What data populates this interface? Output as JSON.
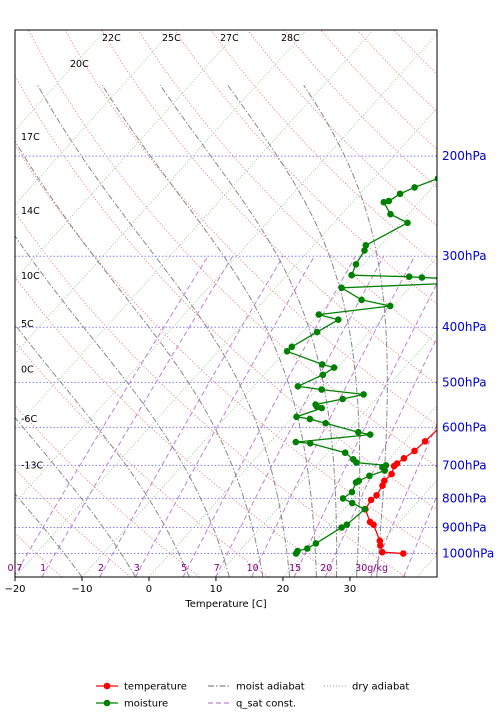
{
  "chart_data": {
    "type": "line",
    "title": "",
    "xlabel": "Temperature [C]",
    "ylabel": "",
    "xlim": [
      -20,
      43
    ],
    "ylim_hpa": [
      1100,
      120
    ],
    "log_y": true,
    "grid": false,
    "legend_placement": "bottom",
    "x_ticks": [
      -20,
      -10,
      0,
      10,
      20,
      30
    ],
    "x_tick_labels": [
      "−20",
      "−10",
      "0",
      "10",
      "20",
      "30"
    ],
    "pressure_levels": [
      200,
      300,
      400,
      500,
      600,
      700,
      800,
      900,
      1000
    ],
    "pressure_labels": [
      "200hPa",
      "300hPa",
      "400hPa",
      "500hPa",
      "600hPa",
      "700hPa",
      "800hPa",
      "900hPa",
      "1000hPa"
    ],
    "dry_adiabat_labels": [
      {
        "text": "-13C",
        "p": 700
      },
      {
        "text": "-6C",
        "p": 580
      },
      {
        "text": "0C",
        "p": 475
      },
      {
        "text": "5C",
        "p": 395
      },
      {
        "text": "10C",
        "p": 325
      },
      {
        "text": "14C",
        "p": 250
      },
      {
        "text": "17C",
        "p": 185
      },
      {
        "text": "20C",
        "p": 155
      },
      {
        "text": "22C",
        "p": 135
      },
      {
        "text": "25C",
        "p": 135
      },
      {
        "text": "27C",
        "p": 135
      },
      {
        "text": "28C",
        "p": 135
      }
    ],
    "mixing_ratio_labels": [
      "0.7",
      "1",
      "2",
      "3",
      "5",
      "7",
      "10",
      "15",
      "20",
      "30g/kg"
    ],
    "mixing_ratio_values": [
      0.7,
      1,
      2,
      3,
      5,
      7,
      10,
      15,
      20,
      30
    ],
    "series": [
      {
        "name": "temperature",
        "color": "#ff0000",
        "points": [
          {
            "x": 34.8,
            "p": 1000
          },
          {
            "x": 31.5,
            "p": 995
          },
          {
            "x": 30.3,
            "p": 968
          },
          {
            "x": 29.6,
            "p": 950
          },
          {
            "x": 26.5,
            "p": 890
          },
          {
            "x": 25.6,
            "p": 880
          },
          {
            "x": 23.2,
            "p": 836
          },
          {
            "x": 22.8,
            "p": 805
          },
          {
            "x": 23.0,
            "p": 790
          },
          {
            "x": 22.6,
            "p": 760
          },
          {
            "x": 22.2,
            "p": 745
          },
          {
            "x": 22.4,
            "p": 725
          },
          {
            "x": 21.7,
            "p": 702
          },
          {
            "x": 21.8,
            "p": 695
          },
          {
            "x": 22.1,
            "p": 680
          },
          {
            "x": 22.7,
            "p": 660
          },
          {
            "x": 23.0,
            "p": 635
          },
          {
            "x": 23.3,
            "p": 600
          },
          {
            "x": 23.1,
            "p": 590
          },
          {
            "x": 22.8,
            "p": 585
          },
          {
            "x": 22.6,
            "p": 560
          },
          {
            "x": 22.0,
            "p": 540
          },
          {
            "x": 21.6,
            "p": 530
          },
          {
            "x": 21.0,
            "p": 515
          },
          {
            "x": 20.6,
            "p": 502
          },
          {
            "x": 20.5,
            "p": 490
          },
          {
            "x": 20.2,
            "p": 475
          },
          {
            "x": 18.6,
            "p": 450
          },
          {
            "x": 18.1,
            "p": 440
          },
          {
            "x": 17.1,
            "p": 425
          },
          {
            "x": 15.5,
            "p": 400
          },
          {
            "x": 15.0,
            "p": 392
          },
          {
            "x": 14.5,
            "p": 382
          },
          {
            "x": 14.3,
            "p": 360
          },
          {
            "x": 14.1,
            "p": 340
          },
          {
            "x": 14.3,
            "p": 330
          },
          {
            "x": 13.9,
            "p": 315
          },
          {
            "x": 13.6,
            "p": 305
          },
          {
            "x": 13.3,
            "p": 293
          },
          {
            "x": 13.0,
            "p": 290
          },
          {
            "x": 13.4,
            "p": 285
          },
          {
            "x": 14.3,
            "p": 275
          },
          {
            "x": 16.2,
            "p": 262
          },
          {
            "x": 19.3,
            "p": 245
          },
          {
            "x": 20.1,
            "p": 238
          },
          {
            "x": 21.2,
            "p": 222
          },
          {
            "x": 26.1,
            "p": 198
          },
          {
            "x": 30.2,
            "p": 187
          },
          {
            "x": 31.2,
            "p": 183
          },
          {
            "x": 32.3,
            "p": 179
          },
          {
            "x": 33.6,
            "p": 175
          },
          {
            "x": 35.3,
            "p": 171
          },
          {
            "x": 35.6,
            "p": 170
          },
          {
            "x": 37.8,
            "p": 162
          },
          {
            "x": 39.9,
            "p": 154
          }
        ]
      },
      {
        "name": "moisture",
        "color": "#008000",
        "points": [
          {
            "x": 18.8,
            "p": 1000
          },
          {
            "x": 18.7,
            "p": 990
          },
          {
            "x": 19.8,
            "p": 980
          },
          {
            "x": 20.4,
            "p": 960
          },
          {
            "x": 22.1,
            "p": 900
          },
          {
            "x": 22.5,
            "p": 890
          },
          {
            "x": 23.1,
            "p": 836
          },
          {
            "x": 20.4,
            "p": 815
          },
          {
            "x": 18.4,
            "p": 800
          },
          {
            "x": 18.9,
            "p": 780
          },
          {
            "x": 18.2,
            "p": 750
          },
          {
            "x": 18.4,
            "p": 745
          },
          {
            "x": 19.3,
            "p": 730
          },
          {
            "x": 20.9,
            "p": 715
          },
          {
            "x": 20.1,
            "p": 705
          },
          {
            "x": 20.4,
            "p": 700
          },
          {
            "x": 15.6,
            "p": 692
          },
          {
            "x": 14.7,
            "p": 683
          },
          {
            "x": 12.6,
            "p": 665
          },
          {
            "x": 6.1,
            "p": 640
          },
          {
            "x": 3.8,
            "p": 637
          },
          {
            "x": 13.9,
            "p": 618
          },
          {
            "x": 11.8,
            "p": 612
          },
          {
            "x": 5.7,
            "p": 590
          },
          {
            "x": 2.8,
            "p": 580
          },
          {
            "x": 0.5,
            "p": 575
          },
          {
            "x": 3.1,
            "p": 555
          },
          {
            "x": 2.1,
            "p": 551
          },
          {
            "x": 1.7,
            "p": 547
          },
          {
            "x": 5.0,
            "p": 535
          },
          {
            "x": 7.5,
            "p": 525
          },
          {
            "x": 0.6,
            "p": 515
          },
          {
            "x": -3.4,
            "p": 508
          },
          {
            "x": -1.2,
            "p": 485
          },
          {
            "x": -0.5,
            "p": 471
          },
          {
            "x": -2.7,
            "p": 465
          },
          {
            "x": -9.7,
            "p": 441
          },
          {
            "x": -9.6,
            "p": 433
          },
          {
            "x": -7.8,
            "p": 408
          },
          {
            "x": -6.3,
            "p": 388
          },
          {
            "x": -9.9,
            "p": 380
          },
          {
            "x": -0.4,
            "p": 367
          },
          {
            "x": -5.5,
            "p": 358
          },
          {
            "x": -10.1,
            "p": 341
          },
          {
            "x": 4.9,
            "p": 335
          },
          {
            "x": 3.2,
            "p": 328
          },
          {
            "x": 0.5,
            "p": 327
          },
          {
            "x": -1.5,
            "p": 326
          },
          {
            "x": -10.3,
            "p": 324
          },
          {
            "x": -11.1,
            "p": 310
          },
          {
            "x": -11.7,
            "p": 293
          },
          {
            "x": -12.2,
            "p": 287
          },
          {
            "x": -9.0,
            "p": 262
          },
          {
            "x": -12.7,
            "p": 253
          },
          {
            "x": -15.3,
            "p": 241
          },
          {
            "x": -14.7,
            "p": 240
          },
          {
            "x": -14.0,
            "p": 233
          },
          {
            "x": -12.7,
            "p": 227
          },
          {
            "x": -10.4,
            "p": 219
          },
          {
            "x": -10.1,
            "p": 217
          },
          {
            "x": -8.0,
            "p": 201
          },
          {
            "x": -7.0,
            "p": 194
          },
          {
            "x": -1.4,
            "p": 162
          },
          {
            "x": 0.6,
            "p": 146
          }
        ]
      }
    ],
    "legend": [
      {
        "name": "temperature",
        "style": "red-line-marker"
      },
      {
        "name": "moisture",
        "style": "green-line-marker"
      },
      {
        "name": "moist adiabat",
        "style": "gray-dashdot"
      },
      {
        "name": "q_sat const.",
        "style": "purple-dashed"
      },
      {
        "name": "dry adiabat",
        "style": "green-dotted"
      }
    ]
  }
}
